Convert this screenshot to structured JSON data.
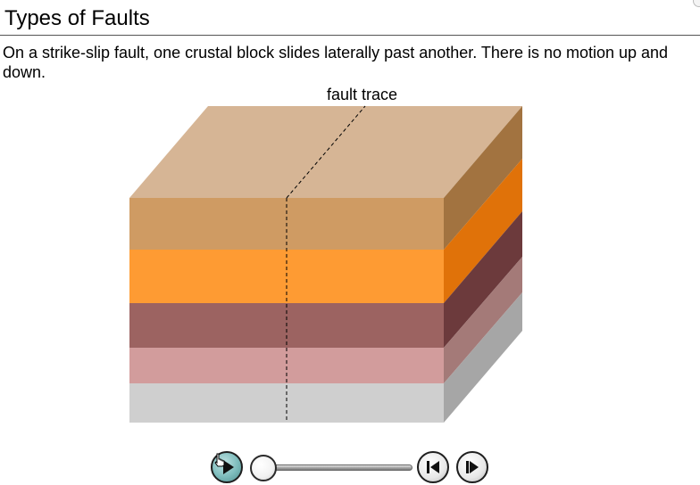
{
  "header": {
    "title": "Types of Faults"
  },
  "main": {
    "description": "On a strike-slip fault, one crustal block slides laterally past another. There is no motion up and down."
  },
  "diagram": {
    "fault_label": "fault trace",
    "layers": [
      {
        "name": "layer-1",
        "front": "#CF9B63",
        "side": "#A27340"
      },
      {
        "name": "layer-2",
        "front": "#FE9B33",
        "side": "#E07209"
      },
      {
        "name": "layer-3",
        "front": "#9C6361",
        "side": "#6C3A3C"
      },
      {
        "name": "layer-4",
        "front": "#D29C9C",
        "side": "#A47A78"
      },
      {
        "name": "layer-5",
        "front": "#CFCFCF",
        "side": "#A6A6A6"
      }
    ],
    "top_color": "#D6B595"
  },
  "controls": {
    "play_icon": "play-icon",
    "step_back_icon": "step-back-icon",
    "step_forward_icon": "step-forward-icon",
    "progress": 0,
    "cursor_icon": "hand-pointer-icon"
  }
}
